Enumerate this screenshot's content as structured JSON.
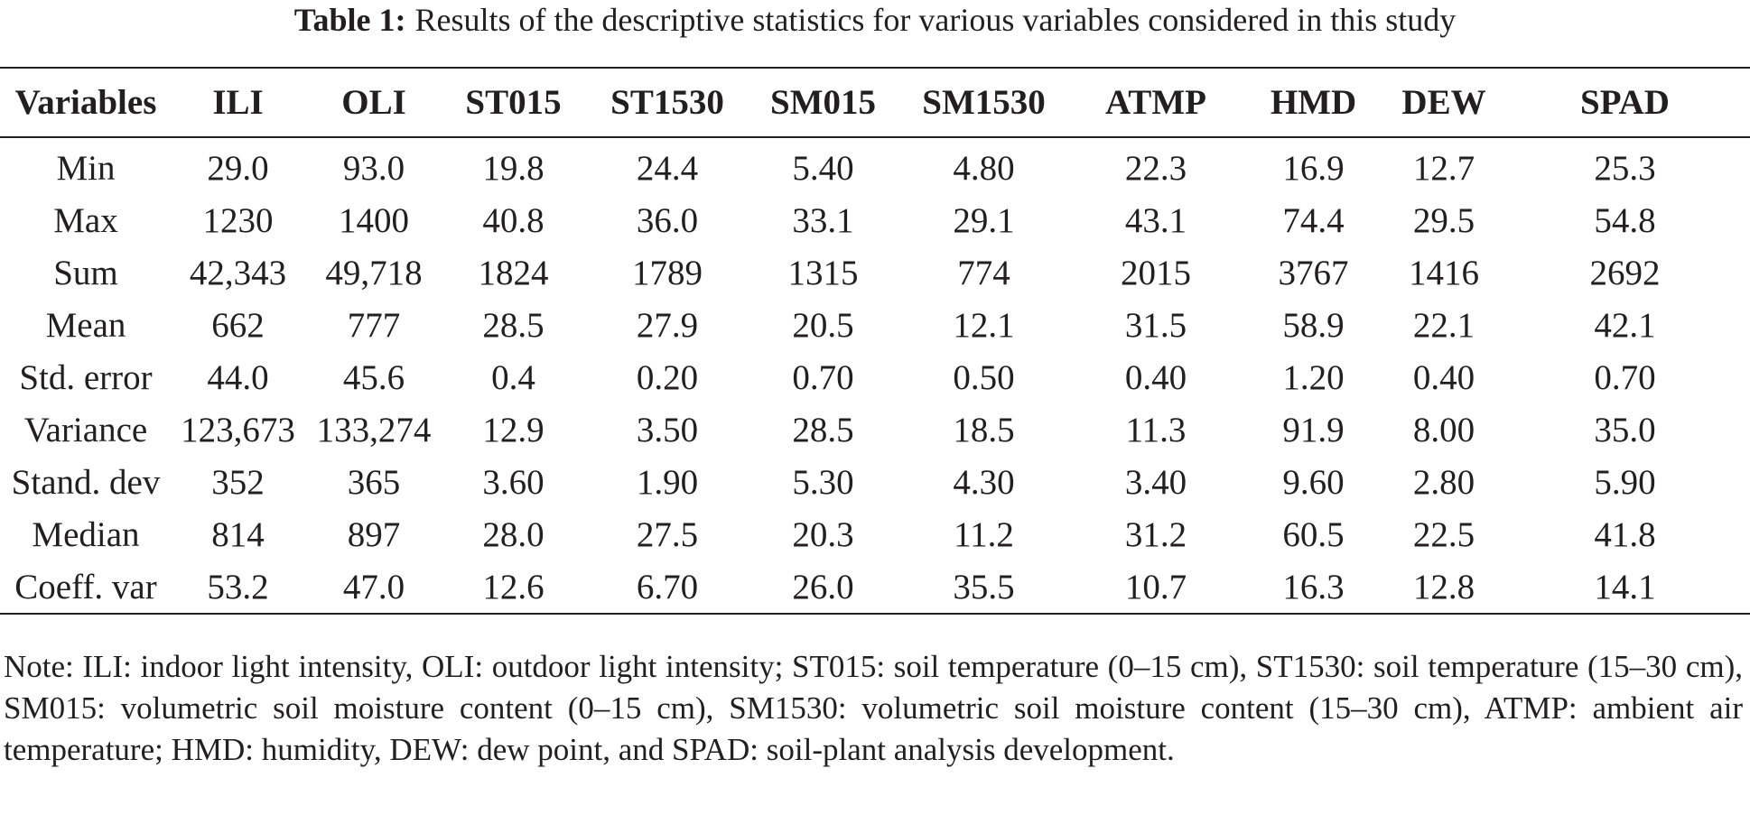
{
  "caption": {
    "label": "Table 1:",
    "text": "Results of the descriptive statistics for various variables considered in this study"
  },
  "table": {
    "headers": [
      "Variables",
      "ILI",
      "OLI",
      "ST015",
      "ST1530",
      "SM015",
      "SM1530",
      "ATMP",
      "HMD",
      "DEW",
      "SPAD"
    ],
    "rows": [
      [
        "Min",
        "29.0",
        "93.0",
        "19.8",
        "24.4",
        "5.40",
        "4.80",
        "22.3",
        "16.9",
        "12.7",
        "25.3"
      ],
      [
        "Max",
        "1230",
        "1400",
        "40.8",
        "36.0",
        "33.1",
        "29.1",
        "43.1",
        "74.4",
        "29.5",
        "54.8"
      ],
      [
        "Sum",
        "42,343",
        "49,718",
        "1824",
        "1789",
        "1315",
        "774",
        "2015",
        "3767",
        "1416",
        "2692"
      ],
      [
        "Mean",
        "662",
        "777",
        "28.5",
        "27.9",
        "20.5",
        "12.1",
        "31.5",
        "58.9",
        "22.1",
        "42.1"
      ],
      [
        "Std. error",
        "44.0",
        "45.6",
        "0.4",
        "0.20",
        "0.70",
        "0.50",
        "0.40",
        "1.20",
        "0.40",
        "0.70"
      ],
      [
        "Variance",
        "123,673",
        "133,274",
        "12.9",
        "3.50",
        "28.5",
        "18.5",
        "11.3",
        "91.9",
        "8.00",
        "35.0"
      ],
      [
        "Stand. dev",
        "352",
        "365",
        "3.60",
        "1.90",
        "5.30",
        "4.30",
        "3.40",
        "9.60",
        "2.80",
        "5.90"
      ],
      [
        "Median",
        "814",
        "897",
        "28.0",
        "27.5",
        "20.3",
        "11.2",
        "31.2",
        "60.5",
        "22.5",
        "41.8"
      ],
      [
        "Coeff. var",
        "53.2",
        "47.0",
        "12.6",
        "6.70",
        "26.0",
        "35.5",
        "10.7",
        "16.3",
        "12.8",
        "14.1"
      ]
    ]
  },
  "note": "Note: ILI: indoor light intensity, OLI: outdoor light intensity; ST015: soil temperature (0–15 cm), ST1530: soil temperature (15–30 cm), SM015: volumetric soil moisture content (0–15 cm), SM1530: volumetric soil moisture content (15–30 cm), ATMP: ambient air temperature; HMD: humidity, DEW: dew point, and SPAD: soil-plant analysis development."
}
